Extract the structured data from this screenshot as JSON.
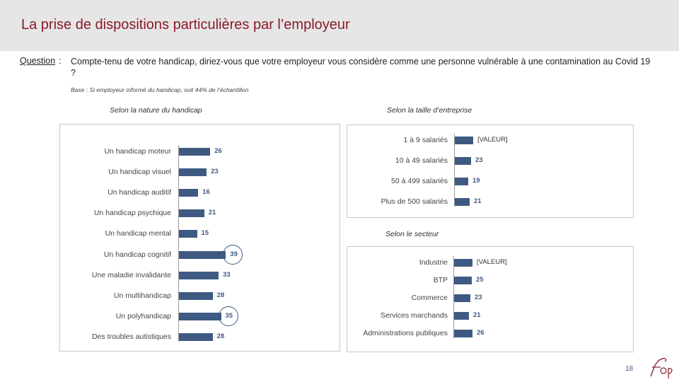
{
  "header": {
    "title": "La prise de dispositions particulières par l’employeur"
  },
  "question": {
    "label": "Question",
    "colon": ":",
    "text": "Compte-tenu de votre handicap, diriez-vous que votre employeur vous considère comme une personne vulnérable à une contamination au Covid 19 ?"
  },
  "base_note": "Base : Si employeur informé du handicap, soit 44% de l’échantillon",
  "chart_data": [
    {
      "type": "bar",
      "orientation": "horizontal",
      "title": "Selon la nature du handicap",
      "categories": [
        "Un handicap moteur",
        "Un handicap visuel",
        "Un handicap auditif",
        "Un handicap psychique",
        "Un handicap mental",
        "Un handicap cognitif",
        "Une maladie invalidante",
        "Un multihandicap",
        "Un polyhandicap",
        "Des troubles autistiques"
      ],
      "values": [
        26,
        23,
        16,
        21,
        15,
        39,
        33,
        28,
        35,
        28
      ],
      "value_labels": [
        "26",
        "23",
        "16",
        "21",
        "15",
        "39",
        "33",
        "28",
        "35",
        "28"
      ],
      "highlighted": [
        false,
        false,
        false,
        false,
        false,
        true,
        false,
        false,
        true,
        false
      ],
      "xlim": [
        0,
        100
      ]
    },
    {
      "type": "bar",
      "orientation": "horizontal",
      "title": "Selon la taille d’entreprise",
      "categories": [
        "1 à 9 salariés",
        "10 à 49 salariés",
        "50 à 499 salariés",
        "Plus de 500 salariés"
      ],
      "values": [
        null,
        23,
        19,
        21
      ],
      "value_labels": [
        "[VALEUR]",
        "23",
        "19",
        "21"
      ],
      "xlim": [
        0,
        100
      ]
    },
    {
      "type": "bar",
      "orientation": "horizontal",
      "title": "Selon le secteur",
      "categories": [
        "Industrie",
        "BTP",
        "Commerce",
        "Services marchands",
        "Administrations publiques"
      ],
      "values": [
        null,
        25,
        23,
        21,
        26
      ],
      "value_labels": [
        "[VALEUR]",
        "25",
        "23",
        "21",
        "26"
      ],
      "xlim": [
        0,
        100
      ]
    }
  ],
  "footer": {
    "page_number": "18"
  },
  "colors": {
    "accent": "#8b1a2b",
    "bar": "#3f5a82"
  }
}
